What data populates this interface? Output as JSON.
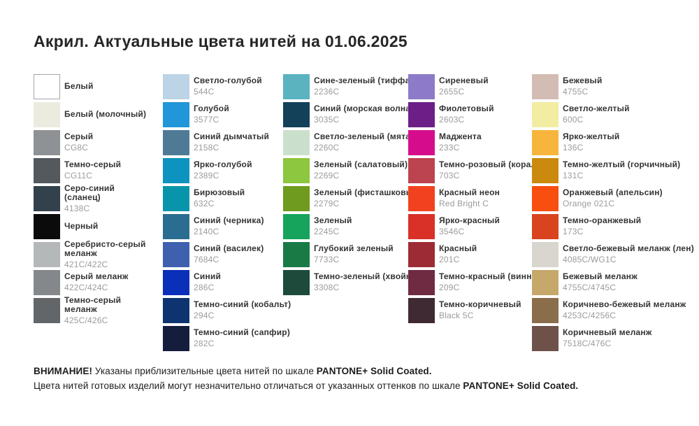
{
  "page": {
    "title": "Акрил. Актуальные цвета нитей на 01.06.2025"
  },
  "columns": [
    {
      "rows": [
        {
          "name": "Белый",
          "code": "",
          "color": "#ffffff",
          "border": true
        },
        {
          "name": "Белый (молочный)",
          "code": "",
          "color": "#ecebdf"
        },
        {
          "name": "Серый",
          "code": "CG8C",
          "color": "#8e9295"
        },
        {
          "name": "Темно-серый",
          "code": "CG11C",
          "color": "#54595e"
        },
        {
          "name": "Серо-синий (сланец)",
          "code": "4138C",
          "color": "#32414c"
        },
        {
          "name": "Черный",
          "code": "",
          "color": "#0b0b0b"
        },
        {
          "name": "Серебристо-серый меланж",
          "code": "421C/422C",
          "color": "#b5b8b8"
        },
        {
          "name": "Серый меланж",
          "code": "422C/424C",
          "color": "#85888a"
        },
        {
          "name": "Темно-серый меланж",
          "code": "425C/426C",
          "color": "#626669"
        }
      ]
    },
    {
      "rows": [
        {
          "name": "Светло-голубой",
          "code": "544C",
          "color": "#bdd3e6"
        },
        {
          "name": "Голубой",
          "code": "3577C",
          "color": "#2196d8"
        },
        {
          "name": "Синий дымчатый",
          "code": "2158C",
          "color": "#4f7a95"
        },
        {
          "name": "Ярко-голубой",
          "code": "2389C",
          "color": "#0d93bf"
        },
        {
          "name": "Бирюзовый",
          "code": "632C",
          "color": "#0895ab"
        },
        {
          "name": "Синий (черника)",
          "code": "2140C",
          "color": "#2b6d90"
        },
        {
          "name": "Синий (василек)",
          "code": "7684C",
          "color": "#3e60ae"
        },
        {
          "name": "Синий",
          "code": "286C",
          "color": "#0a2fb8"
        },
        {
          "name": "Темно-синий (кобальт)",
          "code": "294C",
          "color": "#0d3470"
        },
        {
          "name": "Темно-синий (сапфир)",
          "code": "282C",
          "color": "#151d3d"
        }
      ]
    },
    {
      "rows": [
        {
          "name": "Сине-зеленый (тиффани)",
          "code": "2236C",
          "color": "#5bb3bf"
        },
        {
          "name": "Синий (морская волна)",
          "code": "3035C",
          "color": "#14415a"
        },
        {
          "name": "Светло-зеленый (мята)",
          "code": "2260C",
          "color": "#cbe0cc"
        },
        {
          "name": "Зеленый (салатовый)",
          "code": "2269C",
          "color": "#8dc63f"
        },
        {
          "name": "Зеленый (фисташковый)",
          "code": "2279C",
          "color": "#6f9b1e"
        },
        {
          "name": "Зеленый",
          "code": "2245C",
          "color": "#16a45c"
        },
        {
          "name": "Глубокий зеленый",
          "code": "7733C",
          "color": "#1a7a46"
        },
        {
          "name": "Темно-зеленый (хвойный)",
          "code": "3308C",
          "color": "#1d4a3b"
        }
      ]
    },
    {
      "rows": [
        {
          "name": "Сиреневый",
          "code": "2655C",
          "color": "#8d7ac8"
        },
        {
          "name": "Фиолетовый",
          "code": "2603C",
          "color": "#6d1f87"
        },
        {
          "name": "Маджента",
          "code": "233C",
          "color": "#d50d8d"
        },
        {
          "name": "Темно-розовый (коралл)",
          "code": "703C",
          "color": "#bc4350"
        },
        {
          "name": "Красный неон",
          "code": "Red Bright C",
          "color": "#f2411f"
        },
        {
          "name": "Ярко-красный",
          "code": "3546C",
          "color": "#d93028"
        },
        {
          "name": "Красный",
          "code": "201C",
          "color": "#9d2b35"
        },
        {
          "name": "Темно-красный (винный)",
          "code": "209C",
          "color": "#6e2b42"
        },
        {
          "name": "Темно-коричневый",
          "code": "Black 5C",
          "color": "#3f2a33"
        }
      ]
    },
    {
      "rows": [
        {
          "name": "Бежевый",
          "code": "4755C",
          "color": "#d2bcb3"
        },
        {
          "name": "Светло-желтый",
          "code": "600C",
          "color": "#f2eda2"
        },
        {
          "name": "Ярко-желтый",
          "code": "136C",
          "color": "#f7b53d"
        },
        {
          "name": "Темно-желтый (горчичный)",
          "code": "131C",
          "color": "#cb8a0e"
        },
        {
          "name": "Оранжевый (апельсин)",
          "code": "Orange 021C",
          "color": "#f84e0f"
        },
        {
          "name": "Темно-оранжевый",
          "code": "173C",
          "color": "#d7441d"
        },
        {
          "name": "Светло-бежевый меланж (лен)",
          "code": "4085C/WG1C",
          "color": "#d9d6cf"
        },
        {
          "name": "Бежевый меланж",
          "code": "4755C/4745C",
          "color": "#c6a86b"
        },
        {
          "name": "Коричнево-бежевый меланж",
          "code": "4253C/4256C",
          "color": "#8a6e4b"
        },
        {
          "name": "Коричневый меланж",
          "code": "7518C/476C",
          "color": "#6e5249"
        }
      ]
    }
  ],
  "footer": {
    "line1_segments": [
      {
        "text": "ВНИМАНИЕ!",
        "bold": true
      },
      {
        "text": " Указаны приблизительные цвета нитей по шкале ",
        "bold": false
      },
      {
        "text": "PANTONE+ Solid Coated.",
        "bold": true
      }
    ],
    "line2_segments": [
      {
        "text": "Цвета нитей готовых изделий могут незначительно отличаться от указанных оттенков по шкале ",
        "bold": false
      },
      {
        "text": "PANTONE+ Solid Coated.",
        "bold": true
      }
    ]
  }
}
